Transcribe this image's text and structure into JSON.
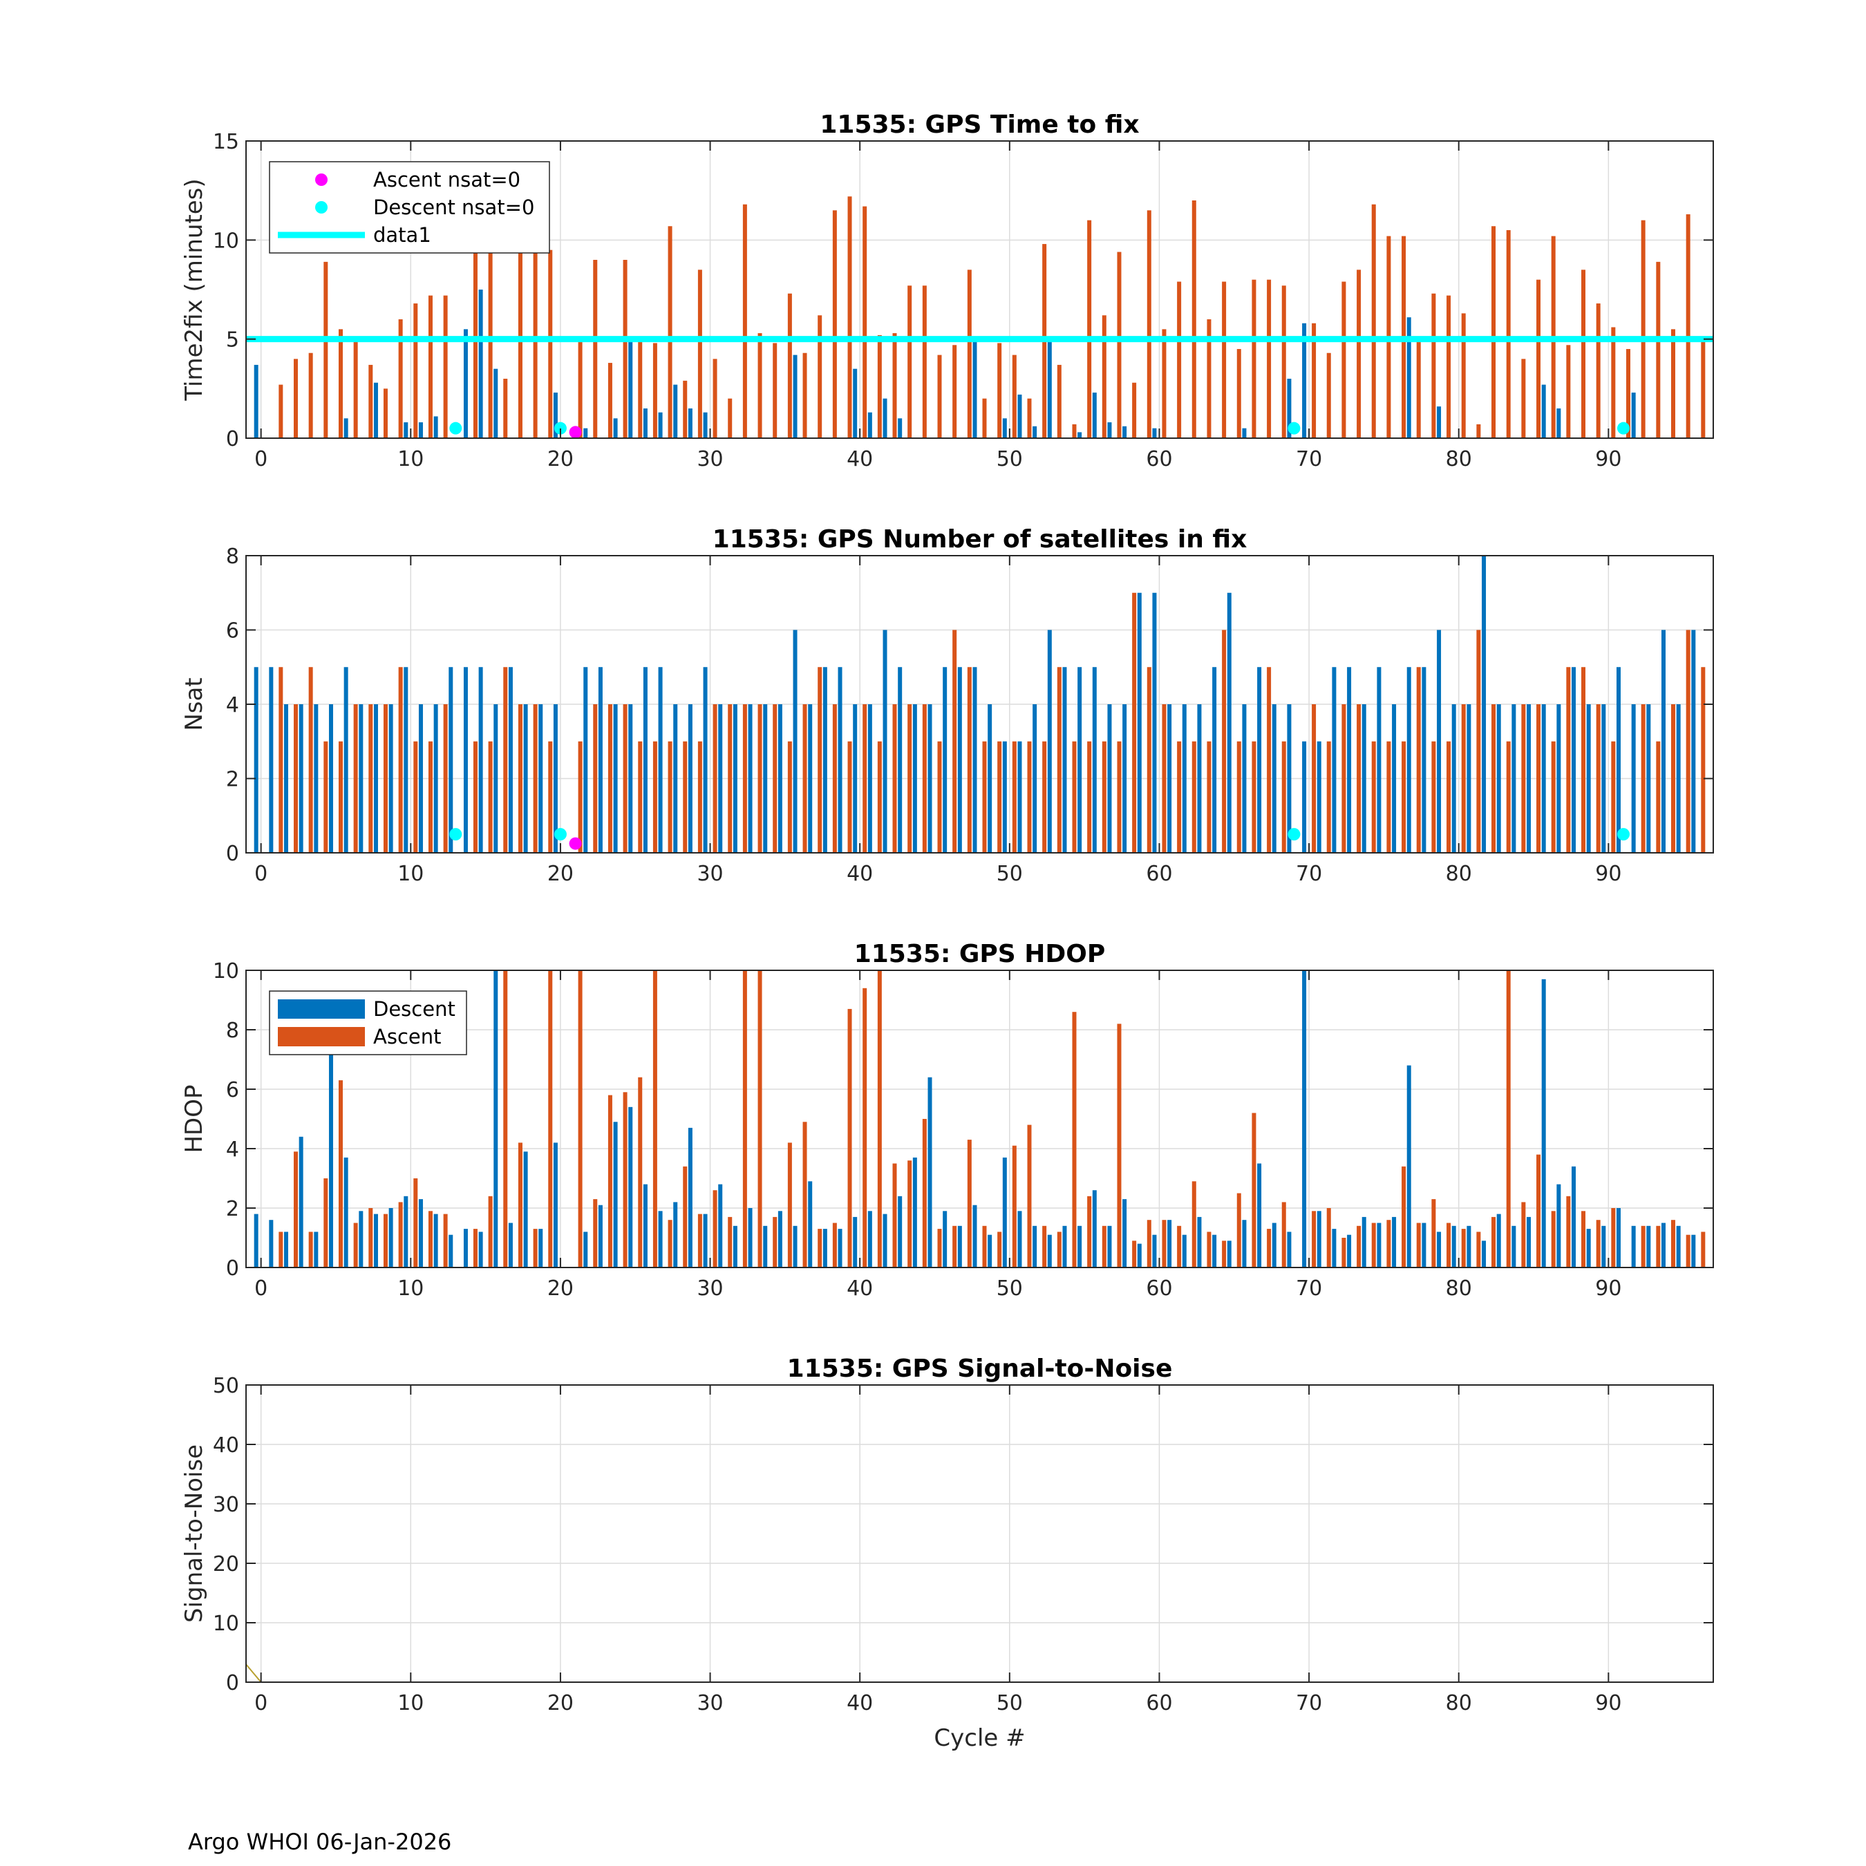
{
  "footer": "Argo WHOI 06-Jan-2026",
  "colors": {
    "descent": "#0072BD",
    "ascent": "#D95319",
    "ascent_nsat0": "#FF00FF",
    "descent_nsat0": "#00FFFF",
    "line": "#00FFFF",
    "grid": "#dcdcdc"
  },
  "chart_data": [
    {
      "type": "bar",
      "title": "11535: GPS Time to fix",
      "xlabel": "",
      "ylabel": "Time2fix (minutes)",
      "xlim": [
        -1,
        97
      ],
      "ylim": [
        0,
        15
      ],
      "xticks": [
        0,
        10,
        20,
        30,
        40,
        50,
        60,
        70,
        80,
        90
      ],
      "yticks": [
        0,
        5,
        10,
        15
      ],
      "grid": true,
      "legend": {
        "placement": "top-left",
        "entries": [
          "Ascent nsat=0",
          "Descent nsat=0",
          "data1"
        ]
      },
      "series": [
        {
          "name": "Descent",
          "values": [
            3.7,
            0.0,
            0.0,
            0.0,
            0.0,
            0.0,
            1.0,
            0.0,
            2.8,
            0.0,
            0.8,
            0.8,
            1.1,
            0.0,
            5.5,
            7.5,
            3.5,
            0.0,
            0.0,
            0.0,
            2.3,
            0.0,
            0.5,
            0.0,
            1.0,
            5.1,
            1.5,
            1.3,
            2.7,
            1.5,
            1.3,
            0.0,
            0.0,
            0.0,
            0.0,
            0.0,
            4.2,
            0.0,
            0.0,
            0.0,
            3.5,
            1.3,
            2.0,
            1.0,
            0.0,
            0.0,
            0.0,
            0.0,
            5.0,
            0.0,
            1.0,
            2.2,
            0.6,
            5.0,
            0.0,
            0.3,
            2.3,
            0.8,
            0.6,
            0.0,
            0.5,
            0.0,
            0.0,
            0.0,
            0.0,
            0.0,
            0.5,
            0.0,
            0.0,
            3.0,
            5.8,
            0.0,
            0.0,
            0.0,
            0.0,
            0.0,
            0.0,
            6.1,
            0.0,
            1.6,
            0.0,
            0.0,
            0.0,
            0.0,
            0.0,
            0.0,
            2.7,
            1.5,
            0.0,
            0.0,
            0.0,
            0.0,
            2.3,
            0.0,
            0.0,
            0.0,
            0.0
          ]
        },
        {
          "name": "Ascent",
          "values": [
            0.0,
            2.7,
            4.0,
            4.3,
            8.9,
            5.5,
            4.9,
            3.7,
            2.5,
            6.0,
            6.8,
            7.2,
            7.2,
            0.0,
            9.5,
            9.5,
            3.0,
            9.5,
            9.5,
            9.5,
            0.0,
            4.9,
            9.0,
            3.8,
            9.0,
            5.0,
            4.8,
            10.7,
            2.9,
            8.5,
            4.0,
            2.0,
            11.8,
            5.3,
            4.8,
            7.3,
            4.3,
            6.2,
            11.5,
            12.2,
            11.7,
            5.2,
            5.3,
            7.7,
            7.7,
            4.2,
            4.7,
            8.5,
            2.0,
            4.8,
            4.2,
            2.0,
            9.8,
            3.7,
            0.7,
            11.0,
            6.2,
            9.4,
            2.8,
            11.5,
            5.5,
            7.9,
            12.0,
            6.0,
            7.9,
            4.5,
            8.0,
            8.0,
            7.7,
            0.0,
            5.8,
            4.3,
            7.9,
            8.5,
            11.8,
            10.2,
            10.2,
            5.0,
            7.3,
            7.2,
            6.3,
            0.7,
            10.7,
            10.5,
            4.0,
            8.0,
            10.2,
            4.7,
            8.5,
            6.8,
            5.6,
            4.5,
            11.0,
            8.9,
            5.5,
            11.3,
            5.0
          ]
        }
      ],
      "markers": [
        {
          "name": "Ascent nsat=0",
          "x": [
            21
          ],
          "y": [
            0.3
          ]
        },
        {
          "name": "Descent nsat=0",
          "x": [
            13,
            20,
            69,
            91
          ],
          "y": [
            0.5,
            0.5,
            0.5,
            0.5
          ]
        }
      ],
      "line": {
        "name": "data1",
        "x": [
          -1,
          97
        ],
        "y": [
          5,
          5
        ]
      }
    },
    {
      "type": "bar",
      "title": "11535: GPS Number of satellites in fix",
      "xlabel": "",
      "ylabel": "Nsat",
      "xlim": [
        -1,
        97
      ],
      "ylim": [
        0,
        8
      ],
      "xticks": [
        0,
        10,
        20,
        30,
        40,
        50,
        60,
        70,
        80,
        90
      ],
      "yticks": [
        0,
        2,
        4,
        6,
        8
      ],
      "grid": true,
      "series": [
        {
          "name": "Descent",
          "values": [
            5,
            5,
            4,
            4,
            4,
            4,
            5,
            4,
            4,
            4,
            5,
            4,
            4,
            5,
            5,
            5,
            4,
            5,
            4,
            4,
            4,
            0,
            5,
            5,
            4,
            4,
            5,
            5,
            4,
            4,
            5,
            4,
            4,
            4,
            4,
            4,
            6,
            4,
            5,
            5,
            4,
            4,
            6,
            5,
            4,
            4,
            5,
            5,
            5,
            4,
            3,
            3,
            4,
            6,
            5,
            5,
            5,
            4,
            4,
            7,
            7,
            4,
            4,
            4,
            5,
            7,
            4,
            5,
            4,
            4,
            3,
            3,
            5,
            5,
            4,
            5,
            4,
            5,
            5,
            6,
            4,
            4,
            8,
            4,
            4,
            4,
            4,
            4,
            5,
            4,
            4,
            5,
            4,
            4,
            6,
            4,
            6
          ]
        },
        {
          "name": "Ascent",
          "values": [
            0,
            5,
            4,
            5,
            3,
            3,
            4,
            4,
            4,
            5,
            3,
            3,
            4,
            0,
            3,
            3,
            5,
            4,
            4,
            3,
            0,
            3,
            4,
            4,
            4,
            3,
            3,
            3,
            3,
            3,
            4,
            4,
            4,
            4,
            4,
            3,
            4,
            5,
            4,
            3,
            4,
            3,
            4,
            4,
            4,
            3,
            6,
            5,
            3,
            3,
            3,
            3,
            3,
            5,
            3,
            3,
            3,
            3,
            7,
            5,
            4,
            3,
            3,
            3,
            6,
            3,
            3,
            5,
            3,
            0,
            4,
            3,
            4,
            4,
            3,
            3,
            3,
            5,
            3,
            3,
            4,
            6,
            4,
            3,
            4,
            4,
            3,
            5,
            5,
            4,
            3,
            0,
            4,
            3,
            4,
            6,
            5
          ]
        }
      ],
      "markers": [
        {
          "name": "Ascent nsat=0",
          "x": [
            21
          ],
          "y": [
            0.25
          ]
        },
        {
          "name": "Descent nsat=0",
          "x": [
            13,
            20,
            69,
            91
          ],
          "y": [
            0.5,
            0.5,
            0.5,
            0.5
          ]
        }
      ]
    },
    {
      "type": "bar",
      "title": "11535: GPS HDOP",
      "xlabel": "",
      "ylabel": "HDOP",
      "xlim": [
        -1,
        97
      ],
      "ylim": [
        0,
        10
      ],
      "xticks": [
        0,
        10,
        20,
        30,
        40,
        50,
        60,
        70,
        80,
        90
      ],
      "yticks": [
        0,
        2,
        4,
        6,
        8,
        10
      ],
      "grid": true,
      "legend": {
        "placement": "top-left",
        "entries": [
          "Descent",
          "Ascent"
        ]
      },
      "series": [
        {
          "name": "Descent",
          "values": [
            1.8,
            1.6,
            1.2,
            4.4,
            1.2,
            7.5,
            3.7,
            1.9,
            1.8,
            2.0,
            2.4,
            2.3,
            1.8,
            1.1,
            1.3,
            1.2,
            10.0,
            1.5,
            3.9,
            1.3,
            4.2,
            0.0,
            1.2,
            2.1,
            4.9,
            5.4,
            2.8,
            1.9,
            2.2,
            4.7,
            1.8,
            2.8,
            1.4,
            2.0,
            1.4,
            1.9,
            1.4,
            2.9,
            1.3,
            1.3,
            1.7,
            1.9,
            1.8,
            2.4,
            3.7,
            6.4,
            1.9,
            1.4,
            2.1,
            1.1,
            3.7,
            1.9,
            1.4,
            1.1,
            1.4,
            1.4,
            2.6,
            1.4,
            2.3,
            0.8,
            1.1,
            1.6,
            1.1,
            1.7,
            1.1,
            0.9,
            1.6,
            3.5,
            1.5,
            1.2,
            10.0,
            1.9,
            1.3,
            1.1,
            1.7,
            1.5,
            1.7,
            6.8,
            1.5,
            1.2,
            1.4,
            1.4,
            0.9,
            1.8,
            1.4,
            1.7,
            9.7,
            2.8,
            3.4,
            1.3,
            1.4,
            2.0,
            1.4,
            1.4,
            1.5,
            1.4,
            1.1
          ]
        },
        {
          "name": "Ascent",
          "values": [
            0.0,
            1.2,
            3.9,
            1.2,
            3.0,
            6.3,
            1.5,
            2.0,
            1.8,
            2.2,
            3.0,
            1.9,
            1.8,
            0.0,
            1.3,
            2.4,
            10.0,
            4.2,
            1.3,
            10.0,
            0.0,
            10.0,
            2.3,
            5.8,
            5.9,
            6.4,
            10.0,
            1.6,
            3.4,
            1.8,
            2.6,
            1.7,
            10.0,
            10.0,
            1.7,
            4.2,
            4.9,
            1.3,
            1.5,
            8.7,
            9.4,
            10.0,
            3.5,
            3.6,
            5.0,
            1.3,
            1.4,
            4.3,
            1.4,
            1.2,
            4.1,
            4.8,
            1.4,
            1.2,
            8.6,
            2.4,
            1.4,
            8.2,
            0.9,
            1.6,
            1.6,
            1.4,
            2.9,
            1.2,
            0.9,
            2.5,
            5.2,
            1.3,
            2.2,
            0.0,
            1.9,
            2.0,
            1.0,
            1.4,
            1.5,
            1.6,
            3.4,
            1.5,
            2.3,
            1.5,
            1.3,
            1.2,
            1.7,
            10.0,
            2.2,
            3.8,
            1.9,
            2.4,
            1.9,
            1.6,
            2.0,
            0.0,
            1.4,
            1.4,
            1.6,
            1.1,
            1.2
          ]
        }
      ]
    },
    {
      "type": "line",
      "title": "11535: GPS Signal-to-Noise",
      "xlabel": "Cycle #",
      "ylabel": "Signal-to-Noise",
      "xlim": [
        -1,
        97
      ],
      "ylim": [
        0,
        50
      ],
      "xticks": [
        0,
        10,
        20,
        30,
        40,
        50,
        60,
        70,
        80,
        90
      ],
      "yticks": [
        0,
        10,
        20,
        30,
        40,
        50
      ],
      "grid": true,
      "series": [
        {
          "values": [
            3.0,
            0.0,
            0.0
          ],
          "x": [
            -1,
            0,
            97
          ]
        }
      ]
    }
  ]
}
